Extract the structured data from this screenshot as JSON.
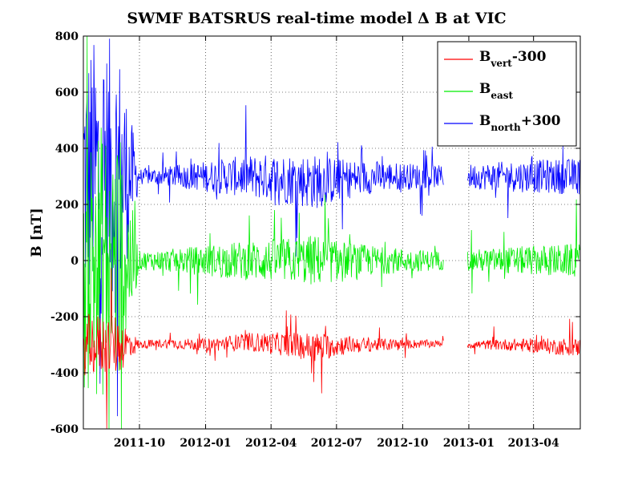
{
  "chart_data": {
    "type": "line",
    "title": "SWMF BATSRUS real-time model  Δ B at VIC",
    "ylabel": "B [nT]",
    "xlabel": "",
    "ylim": [
      -600,
      800
    ],
    "xlim": [
      "2011-07-15",
      "2013-06-05"
    ],
    "yticks": [
      -600,
      -400,
      -200,
      0,
      200,
      400,
      600,
      800
    ],
    "ytick_labels": [
      "-600",
      "-400",
      "-200",
      "0",
      "200",
      "400",
      "600",
      "800"
    ],
    "xticks": [
      "2011-10-01",
      "2012-01-01",
      "2012-04-01",
      "2012-07-01",
      "2012-10-01",
      "2013-01-01",
      "2013-04-01"
    ],
    "xtick_labels": [
      "2011-10",
      "2012-01",
      "2012-04",
      "2012-07",
      "2012-10",
      "2013-01",
      "2013-04"
    ],
    "grid": true,
    "legend_position": "top-right",
    "data_gap": [
      "2012-11-27",
      "2012-12-30"
    ],
    "series": [
      {
        "name": "Bvert-300",
        "legend_main": "B",
        "legend_sub": "vert",
        "legend_suffix": "-300",
        "color": "#ff0000",
        "x": [
          "2011-07-15",
          "2011-09-01",
          "2011-10-01",
          "2011-11-01",
          "2012-01-01",
          "2012-03-01",
          "2012-05-01",
          "2012-06-01",
          "2012-07-15",
          "2012-09-01",
          "2012-11-26",
          "2013-01-01",
          "2013-03-01",
          "2013-06-05"
        ],
        "y": [
          -300,
          -300,
          -300,
          -295,
          -300,
          -290,
          -300,
          -310,
          -300,
          -300,
          -295,
          -300,
          -300,
          -310
        ],
        "spread": [
          200,
          200,
          25,
          30,
          40,
          60,
          80,
          100,
          60,
          40,
          20,
          25,
          40,
          60
        ]
      },
      {
        "name": "Beast",
        "legend_main": "B",
        "legend_sub": "east",
        "legend_suffix": "",
        "color": "#00ee00",
        "x": [
          "2011-07-15",
          "2011-09-01",
          "2011-10-01",
          "2011-11-01",
          "2012-01-01",
          "2012-03-01",
          "2012-05-01",
          "2012-06-01",
          "2012-07-15",
          "2012-09-01",
          "2012-11-26",
          "2013-01-01",
          "2013-03-01",
          "2013-06-05"
        ],
        "y": [
          0,
          0,
          0,
          0,
          0,
          0,
          0,
          0,
          0,
          0,
          0,
          0,
          0,
          0
        ],
        "spread": [
          900,
          900,
          60,
          70,
          100,
          130,
          150,
          170,
          120,
          90,
          60,
          70,
          90,
          110
        ]
      },
      {
        "name": "Bnorth+300",
        "legend_main": "B",
        "legend_sub": "north",
        "legend_suffix": "+300",
        "color": "#0000ff",
        "x": [
          "2011-07-15",
          "2011-09-01",
          "2011-10-01",
          "2011-11-01",
          "2012-01-01",
          "2012-03-01",
          "2012-05-01",
          "2012-06-01",
          "2012-07-15",
          "2012-09-01",
          "2012-11-26",
          "2013-01-01",
          "2013-03-01",
          "2013-06-05"
        ],
        "y": [
          300,
          300,
          300,
          300,
          300,
          300,
          290,
          280,
          290,
          300,
          300,
          300,
          300,
          300
        ],
        "spread": [
          900,
          900,
          50,
          60,
          100,
          140,
          170,
          180,
          130,
          100,
          70,
          80,
          100,
          120
        ]
      }
    ]
  }
}
